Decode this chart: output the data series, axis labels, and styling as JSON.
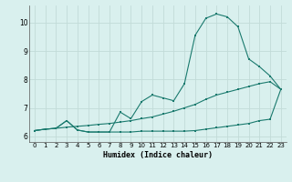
{
  "xlabel": "Humidex (Indice chaleur)",
  "bg_color": "#d9f0ee",
  "grid_color": "#c2dbd8",
  "line_color": "#1a7a6e",
  "xlim": [
    -0.5,
    23.5
  ],
  "ylim": [
    5.8,
    10.6
  ],
  "yticks": [
    6,
    7,
    8,
    9,
    10
  ],
  "xticks": [
    0,
    1,
    2,
    3,
    4,
    5,
    6,
    7,
    8,
    9,
    10,
    11,
    12,
    13,
    14,
    15,
    16,
    17,
    18,
    19,
    20,
    21,
    22,
    23
  ],
  "line1_x": [
    0,
    1,
    2,
    3,
    4,
    5,
    6,
    7,
    8,
    9,
    10,
    11,
    12,
    13,
    14,
    15,
    16,
    17,
    18,
    19,
    20,
    21,
    22,
    23
  ],
  "line1_y": [
    6.2,
    6.25,
    6.28,
    6.32,
    6.35,
    6.38,
    6.42,
    6.45,
    6.5,
    6.55,
    6.62,
    6.68,
    6.78,
    6.88,
    7.0,
    7.12,
    7.3,
    7.45,
    7.55,
    7.65,
    7.75,
    7.85,
    7.92,
    7.65
  ],
  "line2_x": [
    0,
    1,
    2,
    3,
    4,
    5,
    6,
    7,
    8,
    9,
    10,
    11,
    12,
    13,
    14,
    15,
    16,
    17,
    18,
    19,
    20,
    21,
    22,
    23
  ],
  "line2_y": [
    6.2,
    6.25,
    6.28,
    6.55,
    6.22,
    6.15,
    6.15,
    6.15,
    6.15,
    6.15,
    6.18,
    6.18,
    6.18,
    6.18,
    6.18,
    6.2,
    6.25,
    6.3,
    6.35,
    6.4,
    6.45,
    6.55,
    6.6,
    7.65
  ],
  "line3_x": [
    0,
    1,
    2,
    3,
    4,
    5,
    6,
    7,
    8,
    9,
    10,
    11,
    12,
    13,
    14,
    15,
    16,
    17,
    18,
    19,
    20,
    21,
    22,
    23
  ],
  "line3_y": [
    6.2,
    6.25,
    6.28,
    6.55,
    6.22,
    6.15,
    6.15,
    6.15,
    6.85,
    6.62,
    7.22,
    7.45,
    7.35,
    7.25,
    7.85,
    9.55,
    10.15,
    10.3,
    10.2,
    9.85,
    8.72,
    8.45,
    8.12,
    7.65
  ]
}
